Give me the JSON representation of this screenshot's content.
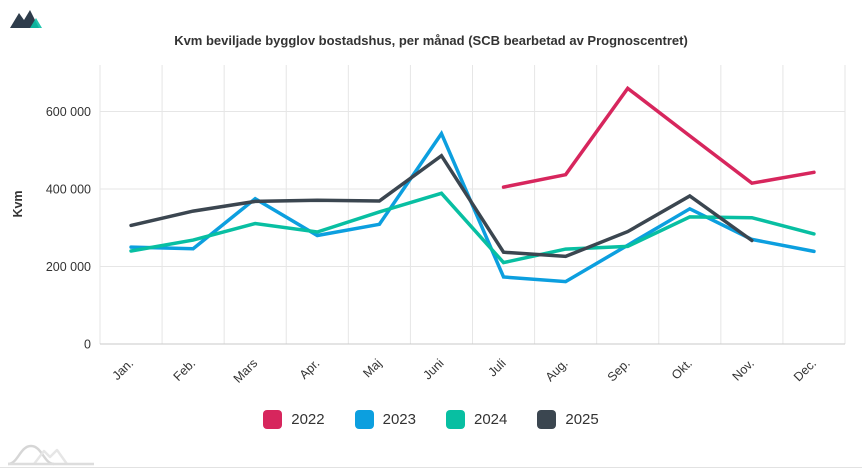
{
  "header": {
    "title": "Kvm beviljade bygglov bostadshus, per månad (SCB bearbetad av Prognoscentret)"
  },
  "icons": {
    "app_logo": "mountains-logo-icon",
    "watermark": "hills-watermark-icon"
  },
  "colors": {
    "series_2022": "#d7265d",
    "series_2023": "#0c9fdf",
    "series_2024": "#08bfa2",
    "series_2025": "#3b4650",
    "gridline": "#e6e6e6",
    "axis_line": "#c9c9c9",
    "text": "#333333"
  },
  "chart_data": {
    "type": "line",
    "title": "Kvm beviljade bygglov bostadshus, per månad (SCB bearbetad av Prognoscentret)",
    "xlabel": "",
    "ylabel": "Kvm",
    "categories": [
      "Jan.",
      "Feb.",
      "Mars",
      "Apr.",
      "Maj",
      "Juni",
      "Juli",
      "Aug.",
      "Sep.",
      "Okt.",
      "Nov.",
      "Dec."
    ],
    "series": [
      {
        "name": "2022",
        "color": "#d7265d",
        "values": [
          null,
          null,
          null,
          null,
          null,
          null,
          405000,
          437000,
          660000,
          537000,
          415000,
          443000
        ]
      },
      {
        "name": "2023",
        "color": "#0c9fdf",
        "values": [
          250000,
          246000,
          375000,
          280000,
          309000,
          543000,
          173000,
          161000,
          255000,
          349000,
          270000,
          239000
        ]
      },
      {
        "name": "2024",
        "color": "#08bfa2",
        "values": [
          240000,
          268000,
          311000,
          289000,
          341000,
          389000,
          210000,
          245000,
          252000,
          328000,
          326000,
          284000
        ]
      },
      {
        "name": "2025",
        "color": "#3b4650",
        "values": [
          306000,
          343000,
          368000,
          371000,
          369000,
          486000,
          237000,
          226000,
          290000,
          382000,
          267000,
          null
        ]
      }
    ],
    "yticks": [
      0,
      200000,
      400000,
      600000
    ],
    "ytick_labels": [
      "0",
      "200 000",
      "400 000",
      "600 000"
    ],
    "ylim": [
      0,
      720000
    ],
    "grid": true,
    "legend_position": "bottom"
  }
}
